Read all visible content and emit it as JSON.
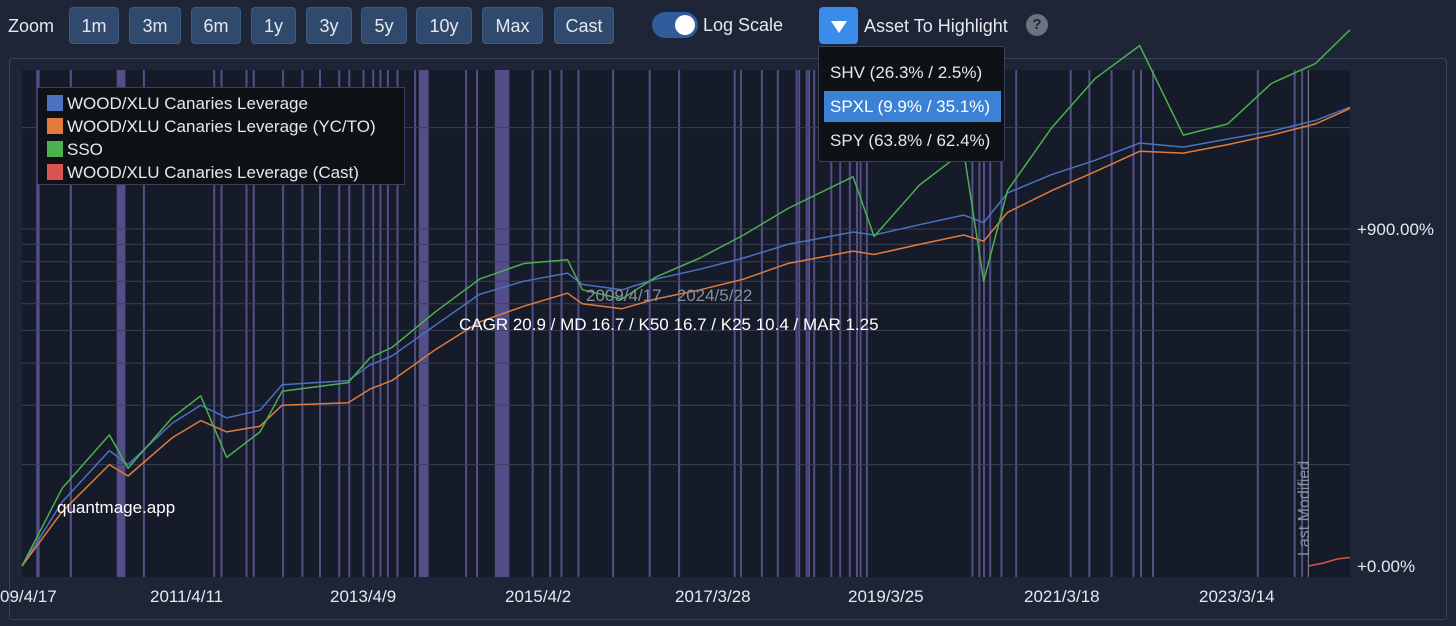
{
  "toolbar": {
    "zoom_label": "Zoom",
    "zoom_buttons": [
      "1m",
      "3m",
      "6m",
      "1y",
      "3y",
      "5y",
      "10y",
      "Max",
      "Cast"
    ],
    "log_scale_label": "Log Scale",
    "log_scale_on": true,
    "highlight_label": "Asset To Highlight",
    "help_glyph": "?"
  },
  "dropdown": {
    "items": [
      "SHV (26.3% / 2.5%)",
      "SPXL (9.9% / 35.1%)",
      "SPY (63.8% / 62.4%)"
    ],
    "selected_index": 1
  },
  "chart_overlay": {
    "date_range": "2009/4/17 - 2024/5/22",
    "stats": "CAGR 20.9 / MD 16.7 / K50 16.7 / K25 10.4 / MAR 1.25",
    "watermark": "quantmage.app",
    "last_modified": "Last Modified"
  },
  "colors": {
    "background": "#1e2536",
    "plot_bg": "#151b28",
    "highlight_band": "#6e64b0",
    "accent": "#3b8bea"
  },
  "chart_data": {
    "type": "line",
    "yscale": "log",
    "x_start": "2009-04-17",
    "x_end": "2024-05-22",
    "last_modified_date": "2023-12-01",
    "x_tick_labels": [
      "09/4/17",
      "2011/4/11",
      "2013/4/9",
      "2015/4/2",
      "2017/3/28",
      "2019/3/25",
      "2021/3/18",
      "2023/3/14"
    ],
    "y_tick_labels": [
      "+900.00%",
      "+0.00%"
    ],
    "y_tick_values": [
      900,
      0
    ],
    "series": [
      {
        "name": "WOOD/XLU Canaries Leverage",
        "color": "#4a72c0",
        "points": [
          [
            "2009-04-17",
            0
          ],
          [
            "2009-10-01",
            55
          ],
          [
            "2010-04-15",
            120
          ],
          [
            "2010-07-01",
            100
          ],
          [
            "2010-12-31",
            165
          ],
          [
            "2011-04-29",
            200
          ],
          [
            "2011-08-15",
            175
          ],
          [
            "2011-12-31",
            190
          ],
          [
            "2012-04-01",
            245
          ],
          [
            "2012-12-31",
            255
          ],
          [
            "2013-04-01",
            295
          ],
          [
            "2013-07-01",
            320
          ],
          [
            "2013-12-31",
            420
          ],
          [
            "2014-06-30",
            540
          ],
          [
            "2014-12-31",
            600
          ],
          [
            "2015-06-30",
            640
          ],
          [
            "2015-08-31",
            585
          ],
          [
            "2016-02-11",
            560
          ],
          [
            "2016-06-30",
            610
          ],
          [
            "2016-12-31",
            660
          ],
          [
            "2017-06-30",
            720
          ],
          [
            "2017-12-31",
            800
          ],
          [
            "2018-09-28",
            880
          ],
          [
            "2018-12-24",
            860
          ],
          [
            "2019-06-30",
            930
          ],
          [
            "2019-12-31",
            1000
          ],
          [
            "2020-03-23",
            945
          ],
          [
            "2020-06-30",
            1180
          ],
          [
            "2020-12-31",
            1350
          ],
          [
            "2021-06-30",
            1500
          ],
          [
            "2021-12-31",
            1700
          ],
          [
            "2022-06-30",
            1650
          ],
          [
            "2022-12-31",
            1750
          ],
          [
            "2023-06-30",
            1850
          ],
          [
            "2023-12-31",
            2000
          ],
          [
            "2024-05-22",
            2200
          ]
        ]
      },
      {
        "name": "WOOD/XLU Canaries Leverage (YC/TO)",
        "color": "#e07b3c",
        "points": [
          [
            "2009-04-17",
            0
          ],
          [
            "2009-10-01",
            45
          ],
          [
            "2010-04-15",
            100
          ],
          [
            "2010-07-01",
            85
          ],
          [
            "2010-12-31",
            140
          ],
          [
            "2011-04-29",
            170
          ],
          [
            "2011-08-15",
            150
          ],
          [
            "2011-12-31",
            160
          ],
          [
            "2012-04-01",
            200
          ],
          [
            "2012-12-31",
            205
          ],
          [
            "2013-04-01",
            235
          ],
          [
            "2013-07-01",
            255
          ],
          [
            "2013-12-31",
            340
          ],
          [
            "2014-06-30",
            430
          ],
          [
            "2014-12-31",
            490
          ],
          [
            "2015-06-30",
            545
          ],
          [
            "2015-08-31",
            500
          ],
          [
            "2016-02-11",
            480
          ],
          [
            "2016-06-30",
            520
          ],
          [
            "2016-12-31",
            560
          ],
          [
            "2017-06-30",
            610
          ],
          [
            "2017-12-31",
            690
          ],
          [
            "2018-09-28",
            760
          ],
          [
            "2018-12-24",
            740
          ],
          [
            "2019-06-30",
            800
          ],
          [
            "2019-12-31",
            860
          ],
          [
            "2020-03-23",
            820
          ],
          [
            "2020-06-30",
            1020
          ],
          [
            "2020-12-31",
            1200
          ],
          [
            "2021-06-30",
            1380
          ],
          [
            "2021-12-31",
            1600
          ],
          [
            "2022-06-30",
            1580
          ],
          [
            "2022-12-31",
            1680
          ],
          [
            "2023-06-30",
            1800
          ],
          [
            "2023-12-31",
            1950
          ],
          [
            "2024-05-22",
            2180
          ]
        ]
      },
      {
        "name": "SSO",
        "color": "#4caf50",
        "points": [
          [
            "2009-04-17",
            0
          ],
          [
            "2009-10-01",
            70
          ],
          [
            "2010-04-15",
            145
          ],
          [
            "2010-07-01",
            95
          ],
          [
            "2010-12-31",
            175
          ],
          [
            "2011-04-29",
            220
          ],
          [
            "2011-08-15",
            110
          ],
          [
            "2011-12-31",
            150
          ],
          [
            "2012-04-01",
            230
          ],
          [
            "2012-12-31",
            250
          ],
          [
            "2013-04-01",
            315
          ],
          [
            "2013-07-01",
            345
          ],
          [
            "2013-12-31",
            470
          ],
          [
            "2014-06-30",
            610
          ],
          [
            "2014-12-31",
            690
          ],
          [
            "2015-06-30",
            710
          ],
          [
            "2015-08-31",
            560
          ],
          [
            "2016-02-11",
            520
          ],
          [
            "2016-06-30",
            620
          ],
          [
            "2016-12-31",
            720
          ],
          [
            "2017-06-30",
            860
          ],
          [
            "2017-12-31",
            1050
          ],
          [
            "2018-09-28",
            1330
          ],
          [
            "2018-12-24",
            850
          ],
          [
            "2019-06-30",
            1250
          ],
          [
            "2019-12-31",
            1600
          ],
          [
            "2020-03-23",
            600
          ],
          [
            "2020-06-30",
            1200
          ],
          [
            "2020-12-31",
            1900
          ],
          [
            "2021-06-30",
            2700
          ],
          [
            "2021-12-31",
            3400
          ],
          [
            "2022-06-30",
            1800
          ],
          [
            "2022-12-31",
            1950
          ],
          [
            "2023-06-30",
            2600
          ],
          [
            "2023-12-31",
            3000
          ],
          [
            "2024-05-22",
            3800
          ]
        ]
      },
      {
        "name": "WOOD/XLU Canaries Leverage (Cast)",
        "color": "#d9534f",
        "points": [
          [
            "2023-12-01",
            0
          ],
          [
            "2024-01-31",
            2
          ],
          [
            "2024-03-31",
            5
          ],
          [
            "2024-05-22",
            6
          ]
        ]
      }
    ],
    "highlight_periods": [
      [
        "2009-06-15",
        "2009-06-29"
      ],
      [
        "2009-11-01",
        "2009-11-10"
      ],
      [
        "2010-05-15",
        "2010-06-20"
      ],
      [
        "2010-09-01",
        "2010-09-08"
      ],
      [
        "2011-06-20",
        "2011-06-27"
      ],
      [
        "2011-07-20",
        "2011-07-26"
      ],
      [
        "2011-11-01",
        "2011-11-06"
      ],
      [
        "2011-12-01",
        "2011-12-05"
      ],
      [
        "2012-04-01",
        "2012-04-07"
      ],
      [
        "2012-06-20",
        "2012-06-25"
      ],
      [
        "2012-09-01",
        "2012-09-05"
      ],
      [
        "2012-11-20",
        "2012-11-26"
      ],
      [
        "2013-01-01",
        "2013-01-05"
      ],
      [
        "2013-03-01",
        "2013-03-06"
      ],
      [
        "2013-04-10",
        "2013-04-16"
      ],
      [
        "2013-05-10",
        "2013-05-16"
      ],
      [
        "2013-06-10",
        "2013-06-14"
      ],
      [
        "2013-07-20",
        "2013-07-25"
      ],
      [
        "2013-10-01",
        "2013-10-07"
      ],
      [
        "2013-10-20",
        "2013-11-30"
      ],
      [
        "2014-05-01",
        "2014-05-06"
      ],
      [
        "2014-06-15",
        "2014-06-21"
      ],
      [
        "2014-09-01",
        "2014-10-31"
      ],
      [
        "2015-02-01",
        "2015-02-07"
      ],
      [
        "2015-04-15",
        "2015-04-20"
      ],
      [
        "2015-06-01",
        "2015-06-06"
      ],
      [
        "2015-08-10",
        "2015-08-16"
      ],
      [
        "2016-01-01",
        "2016-01-07"
      ],
      [
        "2016-06-01",
        "2016-06-04"
      ],
      [
        "2016-10-01",
        "2016-10-05"
      ],
      [
        "2017-05-20",
        "2017-05-26"
      ],
      [
        "2017-06-15",
        "2017-06-21"
      ],
      [
        "2017-09-10",
        "2017-09-15"
      ],
      [
        "2017-11-15",
        "2017-11-20"
      ],
      [
        "2018-02-01",
        "2018-02-06"
      ],
      [
        "2018-02-12",
        "2018-02-20"
      ],
      [
        "2018-03-15",
        "2018-03-20"
      ],
      [
        "2018-03-25",
        "2018-03-31"
      ],
      [
        "2018-04-15",
        "2018-04-20"
      ],
      [
        "2018-06-25",
        "2018-06-30"
      ],
      [
        "2018-08-01",
        "2018-08-06"
      ],
      [
        "2018-09-10",
        "2018-09-15"
      ],
      [
        "2018-10-10",
        "2018-10-15"
      ],
      [
        "2018-10-25",
        "2018-10-29"
      ],
      [
        "2018-11-20",
        "2018-11-25"
      ],
      [
        "2020-02-01",
        "2020-02-07"
      ],
      [
        "2020-03-01",
        "2020-03-06"
      ],
      [
        "2020-03-20",
        "2020-03-25"
      ],
      [
        "2020-04-15",
        "2020-04-20"
      ],
      [
        "2020-06-01",
        "2020-06-05"
      ],
      [
        "2020-08-01",
        "2020-08-06"
      ],
      [
        "2021-03-15",
        "2021-03-20"
      ],
      [
        "2021-06-01",
        "2021-06-05"
      ],
      [
        "2021-09-01",
        "2021-09-06"
      ],
      [
        "2021-12-01",
        "2021-12-05"
      ],
      [
        "2022-01-01",
        "2022-01-05"
      ],
      [
        "2022-02-20",
        "2022-02-25"
      ],
      [
        "2023-05-01",
        "2023-05-06"
      ],
      [
        "2023-10-01",
        "2023-10-06"
      ],
      [
        "2023-11-01",
        "2023-11-05"
      ]
    ]
  }
}
